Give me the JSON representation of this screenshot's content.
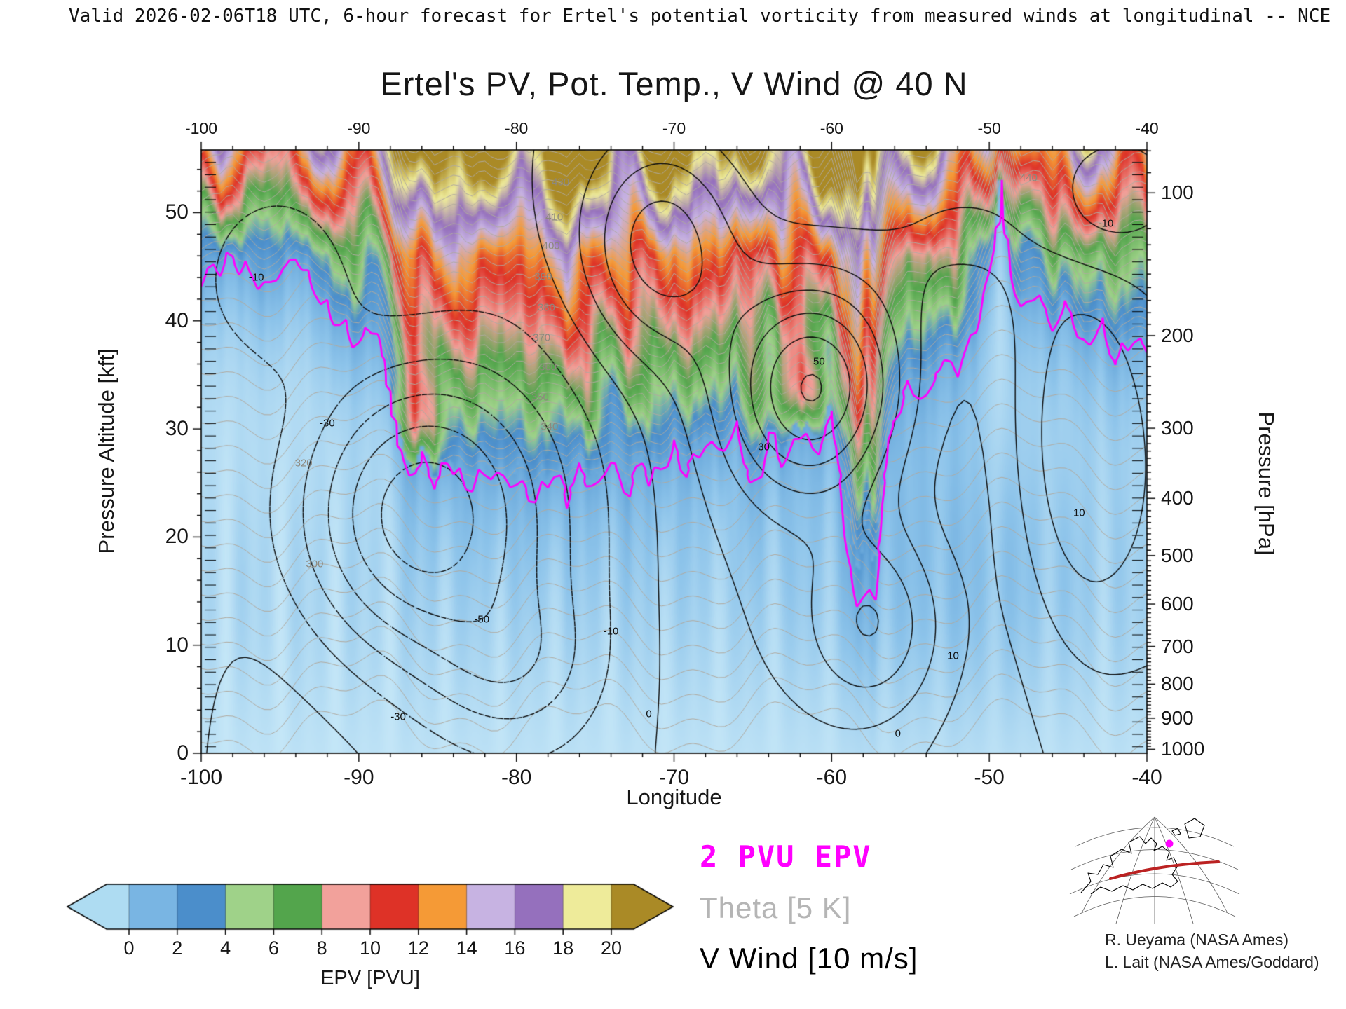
{
  "header": {
    "validity_line": "Valid 2026-02-06T18 UTC, 6-hour forecast for Ertel's potential vorticity from measured winds at longitudinal -- NCE"
  },
  "title": "Ertel's PV, Pot. Temp., V Wind @ 40 N",
  "axes": {
    "x": {
      "label": "Longitude",
      "min": -100,
      "max": -40,
      "major_ticks": [
        -100,
        -90,
        -80,
        -70,
        -60,
        -50,
        -40
      ],
      "minor_step": 2
    },
    "y_left": {
      "label": "Pressure Altitude [kft]",
      "min": 0,
      "max": 55.8,
      "major_ticks": [
        0,
        10,
        20,
        30,
        40,
        50
      ],
      "minor_step": 2
    },
    "y_right": {
      "label": "Pressure [hPa]",
      "major_ticks": [
        100,
        200,
        300,
        400,
        500,
        600,
        700,
        800,
        900,
        1000
      ],
      "minor_step_hpa": 10
    }
  },
  "colorbar": {
    "label": "EPV [PVU]",
    "tick_labels": [
      "0",
      "2",
      "4",
      "6",
      "8",
      "10",
      "12",
      "14",
      "16",
      "18",
      "20"
    ],
    "cell_colors": [
      "#79b5e3",
      "#4b8ecb",
      "#9fd289",
      "#53a54c",
      "#f2a19b",
      "#de3227",
      "#f59a36",
      "#c7b3e2",
      "#9570bd",
      "#eeeb9a"
    ],
    "under_arrow_color": "#aedcf2",
    "over_arrow_color": "#aa8a26"
  },
  "legend": {
    "epv": {
      "text": "2 PVU EPV",
      "color": "#ff00ff"
    },
    "theta": {
      "text": "Theta [5 K]",
      "color": "#b5b5b5"
    },
    "vwind": {
      "text": "V Wind [10 m/s]",
      "color": "#000000"
    }
  },
  "credits": [
    "R. Ueyama (NASA Ames)",
    "L. Lait (NASA Ames/Goddard)"
  ],
  "inset_map": {
    "path_color": "#bb2222",
    "marker_color": "#ff00ff"
  },
  "chart_data": {
    "type": "heatmap",
    "title": "Ertel's PV, Pot. Temp., V Wind @ 40 N",
    "xlabel": "Longitude",
    "ylabel_left": "Pressure Altitude [kft]",
    "ylabel_right": "Pressure [hPa]",
    "x_range": [
      -100,
      -40
    ],
    "y_range_kft": [
      0,
      55.8
    ],
    "fill_field": "Ertel potential vorticity [PVU]",
    "fill_levels": [
      0,
      2,
      4,
      6,
      8,
      10,
      12,
      14,
      16,
      18,
      20
    ],
    "palette_stops": [
      [
        0,
        "#c4e6f7"
      ],
      [
        1.2,
        "#8cc3ea"
      ],
      [
        2.5,
        "#5fa0d6"
      ],
      [
        3.6,
        "#4b8ecb"
      ],
      [
        5,
        "#9fd289"
      ],
      [
        7,
        "#53a54c"
      ],
      [
        9,
        "#f2a19b"
      ],
      [
        11,
        "#de3227"
      ],
      [
        13,
        "#f59a36"
      ],
      [
        15,
        "#c7b3e2"
      ],
      [
        17,
        "#9570bd"
      ],
      [
        19,
        "#eeeb9a"
      ],
      [
        21,
        "#aa8a26"
      ]
    ],
    "epv_highlight_level_pvu": 2,
    "theta_contour_interval_K": 5,
    "theta_levels_range": [
      290,
      520
    ],
    "vwind_contour_interval_ms": 10,
    "vwind_levels": [
      -60,
      -50,
      -40,
      -30,
      -20,
      -10,
      0,
      10,
      20,
      30,
      40,
      50,
      60
    ],
    "tropopause_2pvu": {
      "lon": [
        -100,
        -98,
        -96,
        -94,
        -92,
        -90,
        -89,
        -88,
        -87,
        -86,
        -85,
        -84,
        -83,
        -82,
        -81,
        -80,
        -79,
        -78,
        -77,
        -76,
        -75,
        -74,
        -73,
        -72,
        -71,
        -70,
        -69,
        -68,
        -67,
        -66,
        -65,
        -64,
        -63,
        -62,
        -61,
        -60,
        -59,
        -58.3,
        -57.8,
        -57.3,
        -56.8,
        -56,
        -55,
        -54,
        -53,
        -52,
        -51,
        -50,
        -49.3,
        -48.6,
        -48,
        -47,
        -46,
        -45,
        -44,
        -43,
        -42,
        -41,
        -40
      ],
      "kft": [
        44,
        46,
        43,
        46,
        41,
        38,
        40,
        34,
        26.5,
        28,
        26,
        27.5,
        25.5,
        27,
        25.5,
        26.5,
        24.5,
        26,
        25,
        27,
        25.5,
        27,
        25.5,
        27.5,
        26,
        28.5,
        27,
        29.5,
        28,
        31,
        25,
        30,
        28,
        31,
        29,
        32,
        24,
        16.5,
        22,
        17,
        26,
        33,
        35,
        34,
        37,
        36.5,
        39,
        44,
        54,
        45,
        41,
        43,
        39.5,
        42,
        37.5,
        40,
        36.5,
        38.5,
        37.5
      ]
    },
    "vwind_centers": [
      [
        -87,
        22,
        -58,
        8,
        14
      ],
      [
        -95,
        44,
        -20,
        5,
        9
      ],
      [
        -80,
        8,
        -15,
        5,
        7
      ],
      [
        -61,
        34,
        55,
        5.5,
        10
      ],
      [
        -71,
        47,
        35,
        5,
        10
      ],
      [
        -57,
        12,
        30,
        4.5,
        9
      ],
      [
        -44.5,
        28,
        32,
        5,
        20
      ],
      [
        -52,
        48,
        12,
        6,
        8
      ],
      [
        -43,
        50,
        -12,
        4,
        6
      ]
    ],
    "contour_labels": [
      {
        "text": "430",
        "lon": -77.2,
        "kft": 52.8,
        "color": "gray"
      },
      {
        "text": "410",
        "lon": -77.6,
        "kft": 49.6,
        "color": "gray"
      },
      {
        "text": "400",
        "lon": -77.8,
        "kft": 46.9,
        "color": "gray"
      },
      {
        "text": "390",
        "lon": -78.3,
        "kft": 44.1,
        "color": "gray"
      },
      {
        "text": "380",
        "lon": -78.1,
        "kft": 41.2,
        "color": "gray"
      },
      {
        "text": "370",
        "lon": -78.4,
        "kft": 38.4,
        "color": "gray"
      },
      {
        "text": "360",
        "lon": -78.0,
        "kft": 35.7,
        "color": "gray"
      },
      {
        "text": "350",
        "lon": -78.5,
        "kft": 32.9,
        "color": "gray"
      },
      {
        "text": "340",
        "lon": -77.9,
        "kft": 30.2,
        "color": "gray"
      },
      {
        "text": "320",
        "lon": -93.5,
        "kft": 26.8,
        "color": "gray"
      },
      {
        "text": "300",
        "lon": -92.8,
        "kft": 17.5,
        "color": "gray"
      },
      {
        "text": "440",
        "lon": -47.5,
        "kft": 53.2,
        "color": "gray"
      },
      {
        "text": "-50",
        "lon": -82.2,
        "kft": 12.4,
        "color": "black"
      },
      {
        "text": "-30",
        "lon": -87.5,
        "kft": 3.4,
        "color": "black"
      },
      {
        "text": "-30",
        "lon": -92.0,
        "kft": 30.5,
        "color": "black"
      },
      {
        "text": "-10",
        "lon": -74.0,
        "kft": 11.3,
        "color": "black"
      },
      {
        "text": "-10",
        "lon": -96.5,
        "kft": 44.0,
        "color": "black"
      },
      {
        "text": "0",
        "lon": -71.6,
        "kft": 3.6,
        "color": "black"
      },
      {
        "text": "0",
        "lon": -55.8,
        "kft": 1.8,
        "color": "black"
      },
      {
        "text": "10",
        "lon": -52.3,
        "kft": 9.0,
        "color": "black"
      },
      {
        "text": "30",
        "lon": -64.3,
        "kft": 28.3,
        "color": "black"
      },
      {
        "text": "50",
        "lon": -60.8,
        "kft": 36.2,
        "color": "black"
      },
      {
        "text": "10",
        "lon": -44.3,
        "kft": 22.2,
        "color": "black"
      },
      {
        "text": "-10",
        "lon": -42.6,
        "kft": 49.0,
        "color": "black"
      }
    ]
  }
}
